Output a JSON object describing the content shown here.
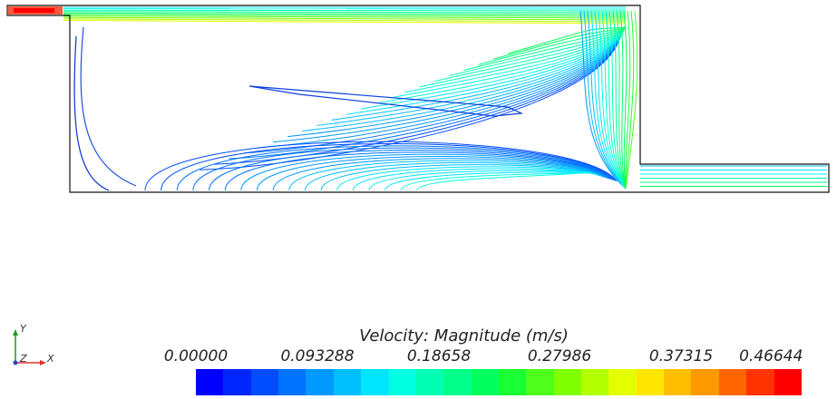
{
  "colormap": {
    "title": "Velocity: Magnitude (m/s)",
    "ticks": [
      "0.00000",
      "0.093288",
      "0.18658",
      "0.27986",
      "0.37315",
      "0.46644"
    ],
    "colors": [
      "#0000ff",
      "#0026ff",
      "#004cff",
      "#0073ff",
      "#0099ff",
      "#00bfff",
      "#00e5ff",
      "#00ffe0",
      "#00ffb5",
      "#00ff8a",
      "#00ff5e",
      "#1aff33",
      "#4dff1a",
      "#80ff00",
      "#b3ff00",
      "#e6ff00",
      "#ffe600",
      "#ffbf00",
      "#ff9900",
      "#ff6600",
      "#ff3300",
      "#ff0000"
    ]
  },
  "axes": {
    "y": "Y",
    "z": "Z",
    "x": "X"
  }
}
